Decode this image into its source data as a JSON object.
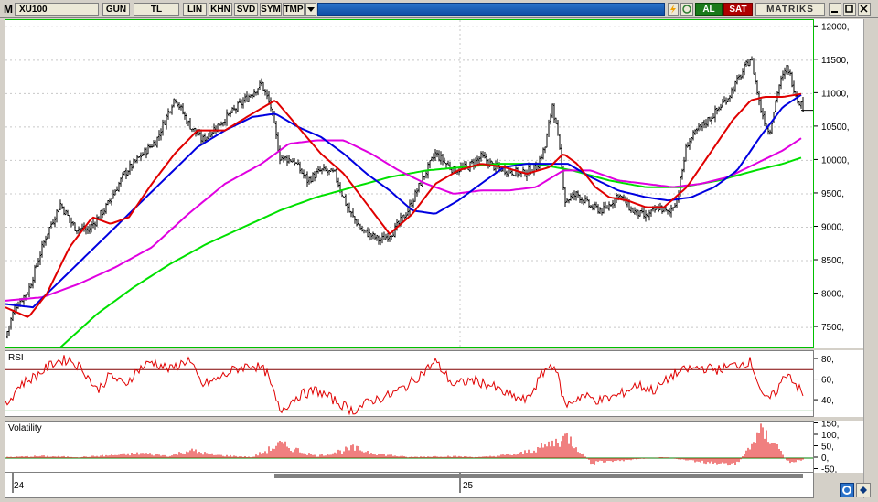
{
  "toolbar": {
    "m_label": "M",
    "symbol": "XU100",
    "period": "GUN",
    "currency": "TL",
    "scale": "LIN",
    "khn": "KHN",
    "svd": "SVD",
    "sym": "SYM",
    "tmp": "TMP",
    "buy": "AL",
    "sell": "SAT",
    "brand": "MATRIKS"
  },
  "colors": {
    "ma_fast": "#e00000",
    "ma_mid": "#0000e0",
    "ma_slow": "#e000e0",
    "ma_long": "#00e000",
    "rsi": "#e00000",
    "vol": "#e00000"
  },
  "price_axis": {
    "ticks": [
      "12000,",
      "11500,",
      "11000,",
      "10500,",
      "10000,",
      "9500,",
      "9000,",
      "8500,",
      "8000,",
      "7500,"
    ]
  },
  "rsi_panel": {
    "title": "RSI",
    "ticks": [
      "80,",
      "60,",
      "40,"
    ]
  },
  "vol_panel": {
    "title": "Volatility",
    "ticks": [
      "150,",
      "100,",
      "50,",
      "0,",
      "-50,"
    ]
  },
  "time_axis": {
    "labels": [
      "24",
      "25"
    ]
  },
  "chart_data": {
    "type": "candlestick",
    "ylim": [
      7200,
      12100
    ],
    "price_anchors": [
      [
        0,
        7350
      ],
      [
        10,
        7800
      ],
      [
        25,
        8050
      ],
      [
        45,
        8900
      ],
      [
        60,
        9350
      ],
      [
        75,
        9000
      ],
      [
        90,
        8950
      ],
      [
        110,
        9300
      ],
      [
        130,
        9800
      ],
      [
        150,
        10100
      ],
      [
        165,
        10300
      ],
      [
        185,
        10950
      ],
      [
        200,
        10550
      ],
      [
        215,
        10300
      ],
      [
        230,
        10500
      ],
      [
        250,
        10750
      ],
      [
        265,
        10950
      ],
      [
        280,
        11150
      ],
      [
        290,
        10800
      ],
      [
        300,
        10050
      ],
      [
        315,
        10000
      ],
      [
        330,
        9700
      ],
      [
        345,
        9850
      ],
      [
        360,
        9800
      ],
      [
        375,
        9250
      ],
      [
        390,
        8950
      ],
      [
        410,
        8800
      ],
      [
        425,
        8950
      ],
      [
        440,
        9250
      ],
      [
        455,
        9700
      ],
      [
        470,
        10100
      ],
      [
        490,
        9850
      ],
      [
        505,
        9900
      ],
      [
        520,
        10050
      ],
      [
        535,
        9900
      ],
      [
        550,
        9850
      ],
      [
        565,
        9800
      ],
      [
        580,
        9900
      ],
      [
        590,
        10200
      ],
      [
        598,
        10850
      ],
      [
        605,
        10250
      ],
      [
        612,
        9400
      ],
      [
        625,
        9500
      ],
      [
        640,
        9300
      ],
      [
        655,
        9250
      ],
      [
        670,
        9500
      ],
      [
        685,
        9250
      ],
      [
        700,
        9150
      ],
      [
        715,
        9300
      ],
      [
        725,
        9200
      ],
      [
        735,
        9450
      ],
      [
        745,
        10250
      ],
      [
        760,
        10500
      ],
      [
        775,
        10700
      ],
      [
        790,
        10950
      ],
      [
        805,
        11300
      ],
      [
        815,
        11550
      ],
      [
        825,
        10800
      ],
      [
        835,
        10400
      ],
      [
        845,
        11100
      ],
      [
        855,
        11400
      ],
      [
        865,
        10950
      ],
      [
        872,
        10800
      ]
    ],
    "ma_fast_anchors": [
      [
        0,
        7800
      ],
      [
        25,
        7650
      ],
      [
        45,
        8000
      ],
      [
        70,
        8700
      ],
      [
        95,
        9150
      ],
      [
        115,
        9050
      ],
      [
        135,
        9150
      ],
      [
        160,
        9650
      ],
      [
        185,
        10100
      ],
      [
        210,
        10450
      ],
      [
        240,
        10450
      ],
      [
        270,
        10700
      ],
      [
        295,
        10900
      ],
      [
        320,
        10500
      ],
      [
        345,
        10100
      ],
      [
        370,
        9800
      ],
      [
        395,
        9350
      ],
      [
        420,
        8900
      ],
      [
        445,
        9200
      ],
      [
        470,
        9650
      ],
      [
        495,
        9850
      ],
      [
        520,
        9950
      ],
      [
        545,
        9900
      ],
      [
        570,
        9800
      ],
      [
        595,
        9900
      ],
      [
        610,
        10100
      ],
      [
        625,
        9950
      ],
      [
        645,
        9600
      ],
      [
        660,
        9450
      ],
      [
        680,
        9400
      ],
      [
        700,
        9300
      ],
      [
        720,
        9300
      ],
      [
        745,
        9600
      ],
      [
        770,
        10100
      ],
      [
        795,
        10600
      ],
      [
        815,
        10900
      ],
      [
        830,
        10950
      ],
      [
        850,
        10950
      ],
      [
        872,
        11000
      ]
    ],
    "ma_mid_anchors": [
      [
        0,
        7850
      ],
      [
        30,
        7800
      ],
      [
        60,
        8200
      ],
      [
        90,
        8600
      ],
      [
        120,
        9000
      ],
      [
        150,
        9400
      ],
      [
        180,
        9800
      ],
      [
        210,
        10200
      ],
      [
        240,
        10450
      ],
      [
        270,
        10650
      ],
      [
        295,
        10700
      ],
      [
        320,
        10500
      ],
      [
        345,
        10350
      ],
      [
        370,
        10100
      ],
      [
        395,
        9800
      ],
      [
        420,
        9550
      ],
      [
        445,
        9250
      ],
      [
        470,
        9200
      ],
      [
        495,
        9400
      ],
      [
        520,
        9650
      ],
      [
        545,
        9900
      ],
      [
        570,
        9950
      ],
      [
        595,
        9950
      ],
      [
        615,
        9950
      ],
      [
        640,
        9750
      ],
      [
        670,
        9550
      ],
      [
        700,
        9450
      ],
      [
        725,
        9400
      ],
      [
        750,
        9450
      ],
      [
        775,
        9600
      ],
      [
        800,
        9850
      ],
      [
        825,
        10350
      ],
      [
        850,
        10800
      ],
      [
        872,
        11000
      ]
    ],
    "ma_slow_anchors": [
      [
        0,
        7900
      ],
      [
        40,
        7950
      ],
      [
        80,
        8150
      ],
      [
        120,
        8400
      ],
      [
        160,
        8700
      ],
      [
        200,
        9200
      ],
      [
        240,
        9650
      ],
      [
        280,
        9950
      ],
      [
        310,
        10250
      ],
      [
        340,
        10300
      ],
      [
        370,
        10300
      ],
      [
        400,
        10100
      ],
      [
        430,
        9850
      ],
      [
        460,
        9650
      ],
      [
        490,
        9500
      ],
      [
        520,
        9550
      ],
      [
        550,
        9550
      ],
      [
        580,
        9600
      ],
      [
        610,
        9850
      ],
      [
        640,
        9850
      ],
      [
        670,
        9700
      ],
      [
        700,
        9650
      ],
      [
        730,
        9600
      ],
      [
        760,
        9650
      ],
      [
        790,
        9750
      ],
      [
        820,
        9950
      ],
      [
        850,
        10150
      ],
      [
        872,
        10350
      ]
    ],
    "ma_long_anchors": [
      [
        60,
        7200
      ],
      [
        100,
        7700
      ],
      [
        140,
        8100
      ],
      [
        180,
        8450
      ],
      [
        220,
        8750
      ],
      [
        260,
        9000
      ],
      [
        300,
        9250
      ],
      [
        340,
        9450
      ],
      [
        380,
        9600
      ],
      [
        420,
        9750
      ],
      [
        460,
        9850
      ],
      [
        500,
        9900
      ],
      [
        540,
        9950
      ],
      [
        580,
        9950
      ],
      [
        620,
        9850
      ],
      [
        660,
        9700
      ],
      [
        700,
        9600
      ],
      [
        740,
        9600
      ],
      [
        780,
        9700
      ],
      [
        820,
        9850
      ],
      [
        850,
        9950
      ],
      [
        872,
        10050
      ]
    ],
    "rsi_anchors": [
      [
        0,
        35
      ],
      [
        15,
        55
      ],
      [
        35,
        65
      ],
      [
        55,
        78
      ],
      [
        70,
        80
      ],
      [
        85,
        70
      ],
      [
        100,
        50
      ],
      [
        115,
        65
      ],
      [
        130,
        55
      ],
      [
        145,
        70
      ],
      [
        160,
        78
      ],
      [
        180,
        70
      ],
      [
        200,
        80
      ],
      [
        215,
        55
      ],
      [
        230,
        60
      ],
      [
        250,
        70
      ],
      [
        270,
        75
      ],
      [
        285,
        68
      ],
      [
        300,
        30
      ],
      [
        320,
        45
      ],
      [
        340,
        50
      ],
      [
        360,
        40
      ],
      [
        380,
        30
      ],
      [
        400,
        40
      ],
      [
        420,
        45
      ],
      [
        440,
        55
      ],
      [
        460,
        70
      ],
      [
        470,
        78
      ],
      [
        490,
        55
      ],
      [
        510,
        60
      ],
      [
        530,
        55
      ],
      [
        550,
        45
      ],
      [
        570,
        40
      ],
      [
        590,
        70
      ],
      [
        600,
        76
      ],
      [
        612,
        35
      ],
      [
        630,
        45
      ],
      [
        650,
        40
      ],
      [
        670,
        45
      ],
      [
        690,
        55
      ],
      [
        710,
        50
      ],
      [
        730,
        65
      ],
      [
        745,
        70
      ],
      [
        760,
        72
      ],
      [
        780,
        70
      ],
      [
        800,
        75
      ],
      [
        815,
        78
      ],
      [
        830,
        40
      ],
      [
        840,
        45
      ],
      [
        855,
        68
      ],
      [
        865,
        55
      ],
      [
        872,
        45
      ]
    ],
    "vol_anchors": [
      [
        0,
        5
      ],
      [
        40,
        10
      ],
      [
        80,
        5
      ],
      [
        120,
        15
      ],
      [
        150,
        25
      ],
      [
        180,
        10
      ],
      [
        200,
        40
      ],
      [
        230,
        15
      ],
      [
        270,
        5
      ],
      [
        300,
        70
      ],
      [
        320,
        40
      ],
      [
        340,
        10
      ],
      [
        380,
        50
      ],
      [
        410,
        20
      ],
      [
        440,
        5
      ],
      [
        480,
        10
      ],
      [
        520,
        5
      ],
      [
        560,
        20
      ],
      [
        590,
        60
      ],
      [
        615,
        110
      ],
      [
        640,
        -25
      ],
      [
        680,
        -10
      ],
      [
        720,
        5
      ],
      [
        760,
        -20
      ],
      [
        800,
        -30
      ],
      [
        825,
        130
      ],
      [
        840,
        90
      ],
      [
        855,
        -20
      ],
      [
        872,
        -10
      ]
    ]
  }
}
